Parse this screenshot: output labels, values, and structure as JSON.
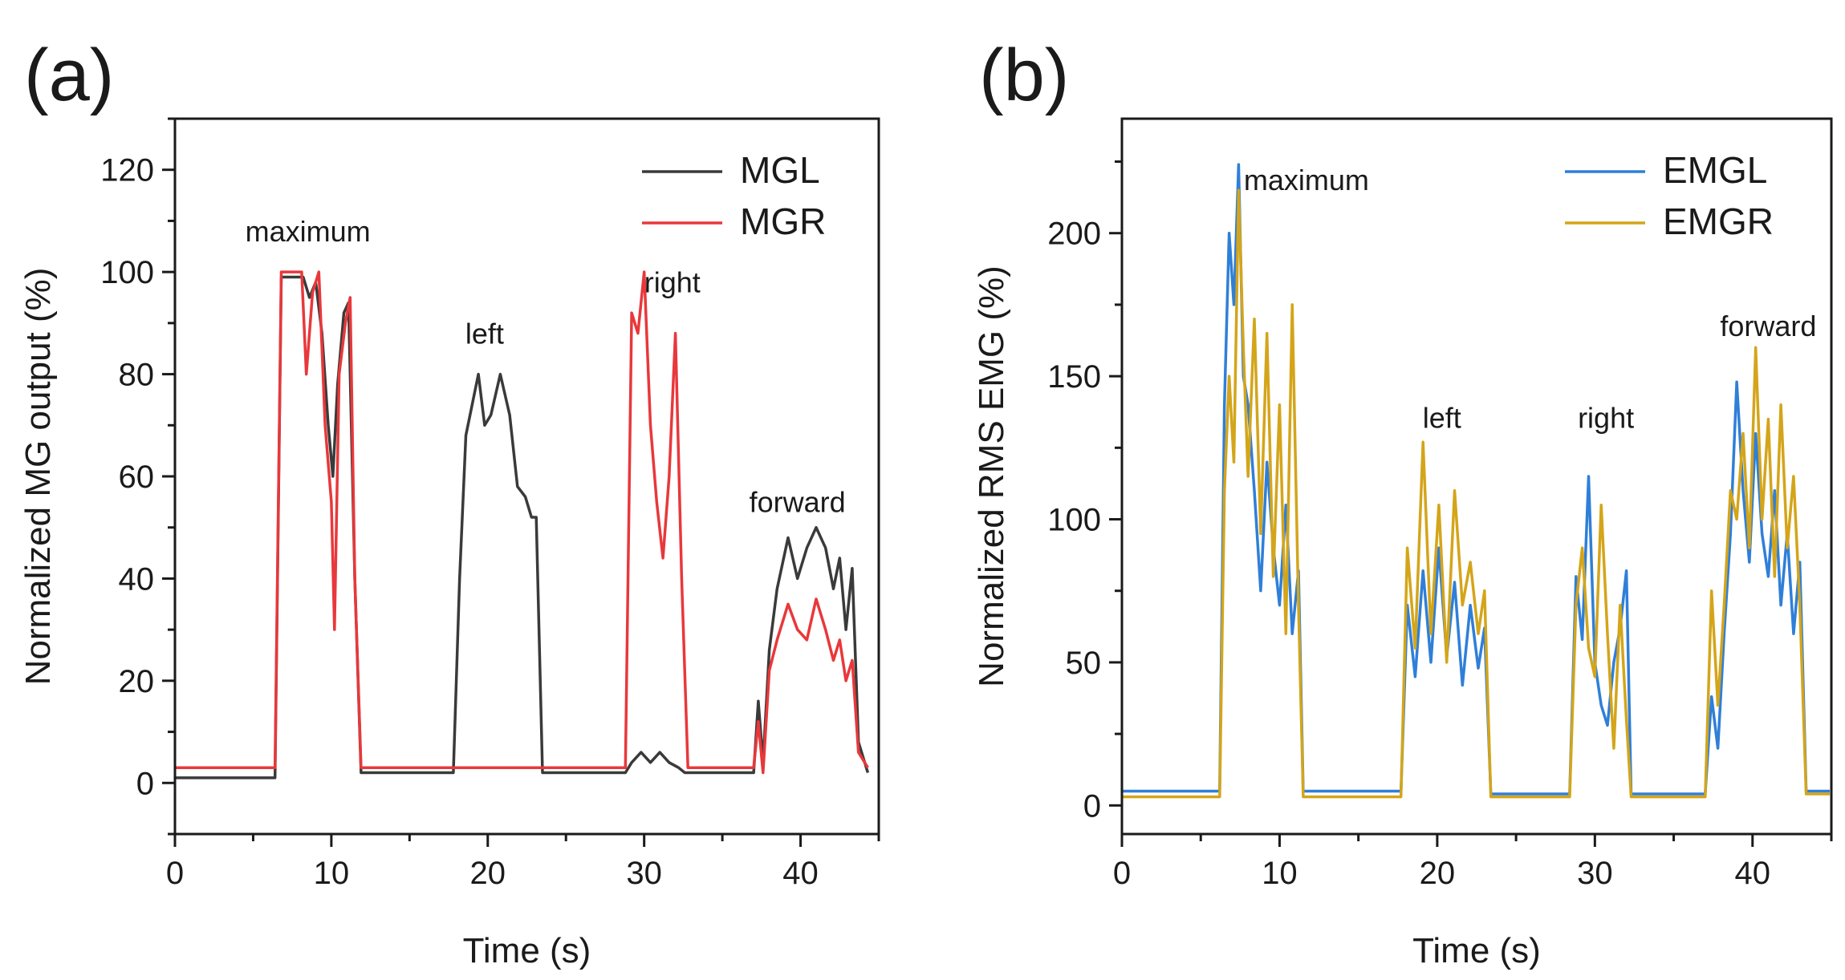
{
  "chart_data": [
    {
      "type": "line",
      "panel_label": "(a)",
      "xlabel": "Time (s)",
      "ylabel": "Normalized MG output (%)",
      "xlim": [
        0,
        45
      ],
      "ylim": [
        -10,
        130
      ],
      "xticks": [
        0,
        10,
        20,
        30,
        40
      ],
      "yticks": [
        0,
        20,
        40,
        60,
        80,
        100,
        120
      ],
      "legend_position": "top-right",
      "series": [
        {
          "name": "MGL",
          "color": "#3a3a3a",
          "x": [
            0,
            6.4,
            6.8,
            7.5,
            8.2,
            8.6,
            9.0,
            9.4,
            9.8,
            10.1,
            10.4,
            10.8,
            11.1,
            11.5,
            11.9,
            17.8,
            18.2,
            18.6,
            19.0,
            19.4,
            19.8,
            20.2,
            20.8,
            21.4,
            21.9,
            22.4,
            22.8,
            23.1,
            23.5,
            28.8,
            29.2,
            29.8,
            30.4,
            31.0,
            31.6,
            32.2,
            32.6,
            37.0,
            37.3,
            37.6,
            38.0,
            38.5,
            39.2,
            39.8,
            40.4,
            41.0,
            41.6,
            42.1,
            42.5,
            42.9,
            43.3,
            43.7,
            44.3
          ],
          "values": [
            1,
            1,
            99,
            99,
            99,
            95,
            98,
            88,
            70,
            60,
            78,
            92,
            94,
            40,
            2,
            2,
            40,
            68,
            74,
            80,
            70,
            72,
            80,
            72,
            58,
            56,
            52,
            52,
            2,
            2,
            4,
            6,
            4,
            6,
            4,
            3,
            2,
            2,
            16,
            4,
            26,
            38,
            48,
            40,
            46,
            50,
            46,
            38,
            44,
            30,
            42,
            8,
            2
          ]
        },
        {
          "name": "MGR",
          "color": "#e8383b",
          "x": [
            0,
            6.4,
            6.8,
            7.5,
            8.1,
            8.4,
            8.8,
            9.2,
            9.6,
            10.0,
            10.2,
            10.5,
            10.9,
            11.2,
            11.5,
            11.9,
            17.8,
            23.5,
            28.8,
            29.2,
            29.6,
            30.0,
            30.4,
            30.8,
            31.2,
            31.6,
            32.0,
            32.4,
            32.8,
            37.0,
            37.3,
            37.6,
            38.0,
            38.5,
            39.2,
            39.8,
            40.4,
            41.0,
            41.6,
            42.1,
            42.5,
            42.9,
            43.3,
            43.7,
            44.3
          ],
          "values": [
            3,
            3,
            100,
            100,
            100,
            80,
            96,
            100,
            70,
            55,
            30,
            80,
            90,
            95,
            40,
            3,
            3,
            3,
            3,
            92,
            88,
            100,
            70,
            55,
            44,
            60,
            88,
            40,
            3,
            3,
            12,
            2,
            22,
            28,
            35,
            30,
            28,
            36,
            30,
            24,
            28,
            20,
            24,
            6,
            3
          ]
        }
      ],
      "annotations": [
        {
          "text": "maximum",
          "x": 8.5,
          "y": 106
        },
        {
          "text": "left",
          "x": 19.8,
          "y": 86
        },
        {
          "text": "right",
          "x": 31.8,
          "y": 96
        },
        {
          "text": "forward",
          "x": 39.8,
          "y": 53
        }
      ]
    },
    {
      "type": "line",
      "panel_label": "(b)",
      "xlabel": "Time (s)",
      "ylabel": "Normalized RMS EMG (%)",
      "xlim": [
        0,
        45
      ],
      "ylim": [
        -10,
        240
      ],
      "xticks": [
        0,
        10,
        20,
        30,
        40
      ],
      "yticks": [
        0,
        50,
        100,
        150,
        200
      ],
      "legend_position": "top-right",
      "series": [
        {
          "name": "EMGL",
          "color": "#2f7fd8",
          "x": [
            0,
            6.2,
            6.5,
            6.8,
            7.1,
            7.4,
            7.7,
            8.0,
            8.4,
            8.8,
            9.2,
            9.6,
            10.0,
            10.4,
            10.8,
            11.2,
            11.5,
            17.7,
            18.1,
            18.6,
            19.1,
            19.6,
            20.1,
            20.6,
            21.1,
            21.6,
            22.1,
            22.6,
            23.0,
            23.4,
            28.4,
            28.8,
            29.2,
            29.6,
            30.0,
            30.4,
            30.8,
            31.2,
            31.6,
            32.0,
            32.3,
            37.0,
            37.4,
            37.8,
            38.2,
            38.6,
            39.0,
            39.4,
            39.8,
            40.2,
            40.6,
            41.0,
            41.4,
            41.8,
            42.2,
            42.6,
            43.0,
            43.4,
            44.9
          ],
          "values": [
            5,
            5,
            140,
            200,
            175,
            224,
            150,
            140,
            110,
            75,
            120,
            90,
            70,
            105,
            60,
            82,
            5,
            5,
            70,
            45,
            82,
            50,
            90,
            52,
            78,
            42,
            70,
            48,
            62,
            4,
            4,
            80,
            58,
            115,
            50,
            35,
            28,
            50,
            62,
            82,
            4,
            4,
            38,
            20,
            60,
            95,
            148,
            110,
            85,
            130,
            95,
            80,
            110,
            70,
            95,
            60,
            85,
            5,
            5
          ]
        },
        {
          "name": "EMGR",
          "color": "#d4a51a",
          "x": [
            0,
            6.2,
            6.5,
            6.8,
            7.1,
            7.4,
            7.7,
            8.0,
            8.4,
            8.8,
            9.2,
            9.6,
            10.0,
            10.4,
            10.8,
            11.2,
            11.5,
            17.7,
            18.1,
            18.6,
            19.1,
            19.6,
            20.1,
            20.6,
            21.1,
            21.6,
            22.1,
            22.6,
            23.0,
            23.4,
            28.4,
            28.8,
            29.2,
            29.6,
            30.0,
            30.4,
            30.8,
            31.2,
            31.6,
            32.0,
            32.3,
            37.0,
            37.4,
            37.8,
            38.2,
            38.6,
            39.0,
            39.4,
            39.8,
            40.2,
            40.6,
            41.0,
            41.4,
            41.8,
            42.2,
            42.6,
            43.0,
            43.4,
            44.9
          ],
          "values": [
            3,
            3,
            110,
            150,
            120,
            215,
            160,
            115,
            170,
            95,
            165,
            80,
            140,
            60,
            175,
            70,
            3,
            3,
            90,
            55,
            127,
            60,
            105,
            50,
            110,
            70,
            85,
            60,
            75,
            3,
            3,
            70,
            90,
            55,
            45,
            105,
            60,
            20,
            70,
            30,
            3,
            3,
            75,
            35,
            70,
            110,
            100,
            130,
            90,
            160,
            100,
            135,
            80,
            140,
            90,
            115,
            70,
            4,
            4
          ]
        }
      ],
      "annotations": [
        {
          "text": "maximum",
          "x": 11.7,
          "y": 215
        },
        {
          "text": "left",
          "x": 20.3,
          "y": 132
        },
        {
          "text": "right",
          "x": 30.7,
          "y": 132
        },
        {
          "text": "forward",
          "x": 41.0,
          "y": 164
        }
      ]
    }
  ]
}
